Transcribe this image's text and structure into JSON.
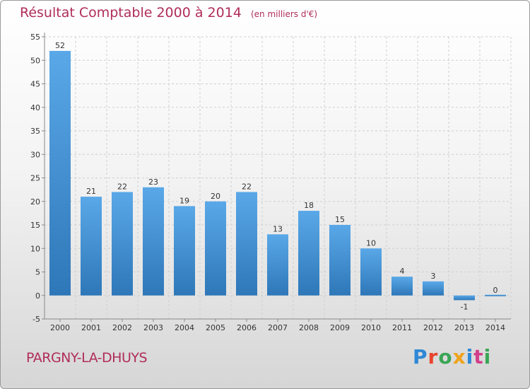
{
  "header": {
    "title": "Résultat Comptable 2000 à 2014",
    "subtitle": "(en milliers d'€)"
  },
  "footer": {
    "commune": "PARGNY-LA-DHUYS",
    "brand": "Proxiti",
    "brand_colors": [
      "#2f88d6",
      "#e7442c",
      "#3aa655",
      "#f0a21a",
      "#2f88d6",
      "#d23f8b",
      "#3aa655"
    ]
  },
  "colors": {
    "title": "#b02d5a",
    "bar_light": "#5aa8e8",
    "bar_dark": "#2e77b8",
    "grid": "#cfcfcf",
    "axis_text": "#333333"
  },
  "chart_data": {
    "type": "bar",
    "categories": [
      "2000",
      "2001",
      "2002",
      "2003",
      "2004",
      "2005",
      "2006",
      "2007",
      "2008",
      "2009",
      "2010",
      "2011",
      "2012",
      "2013",
      "2014"
    ],
    "values": [
      52,
      21,
      22,
      23,
      19,
      20,
      22,
      13,
      18,
      15,
      10,
      4,
      3,
      -1,
      0
    ],
    "data_labels": [
      "52",
      "21",
      "22",
      "23",
      "19",
      "20",
      "22",
      "13",
      "18",
      "15",
      "10",
      "4",
      "3",
      "-1",
      "0"
    ],
    "yticks": [
      "-5",
      "0",
      "5",
      "10",
      "15",
      "20",
      "25",
      "30",
      "35",
      "40",
      "45",
      "50",
      "55"
    ],
    "ylim": [
      -5,
      55
    ],
    "grid": true,
    "title": "Résultat Comptable 2000 à 2014",
    "xlabel": "",
    "ylabel": ""
  }
}
